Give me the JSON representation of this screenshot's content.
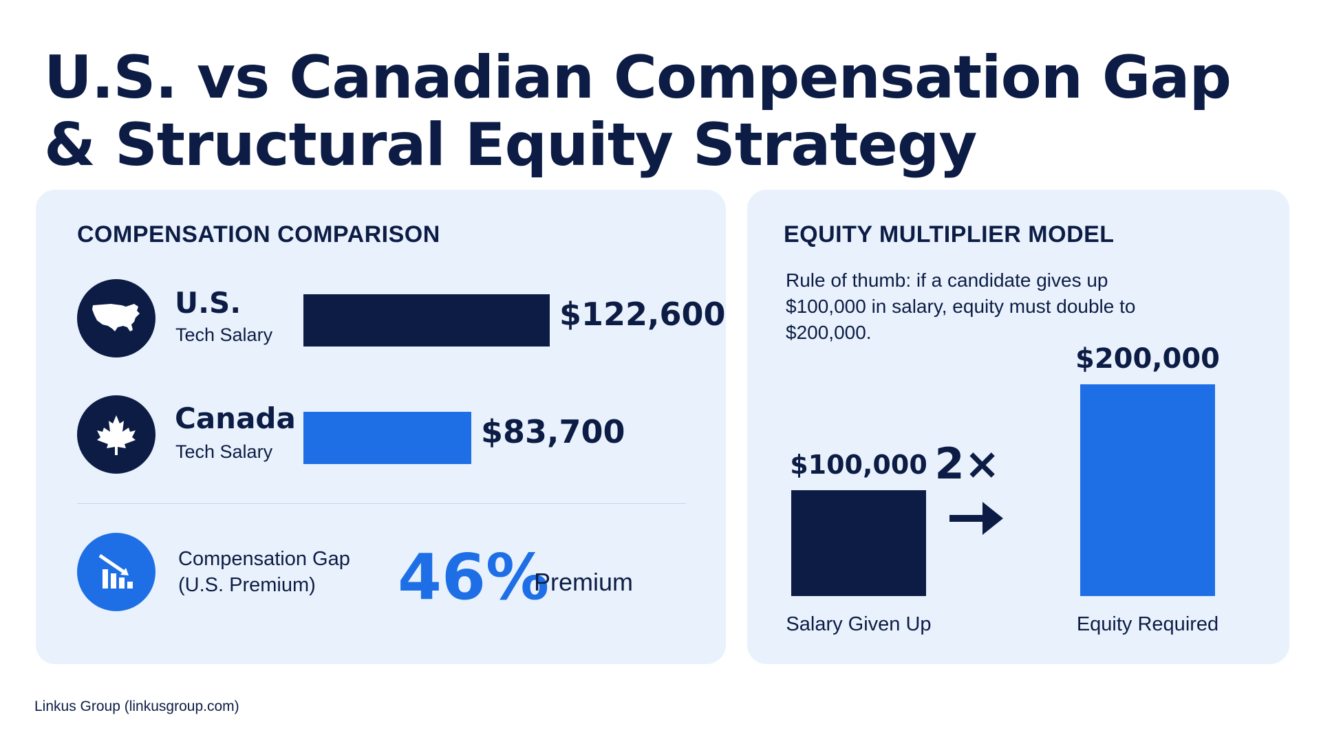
{
  "title": {
    "line1": "U.S. vs Canadian Compensation Gap",
    "line2": "& Structural Equity Strategy"
  },
  "colors": {
    "navy": "#0c1c45",
    "blue": "#1e6fe6",
    "panel": "#e9f2fc"
  },
  "comparison": {
    "heading": "COMPENSATION COMPARISON",
    "rows": [
      {
        "country": "U.S.",
        "sublabel": "Tech Salary",
        "value": 122600,
        "value_label": "$122,600",
        "icon": "us-map-icon"
      },
      {
        "country": "Canada",
        "sublabel": "Tech Salary",
        "value": 83700,
        "value_label": "$83,700",
        "icon": "maple-leaf-icon"
      }
    ],
    "gap": {
      "label_line1": "Compensation Gap",
      "label_line2": "(U.S. Premium)",
      "value": "46%",
      "suffix": "Premium",
      "icon": "declining-bar-chart-icon"
    }
  },
  "equity_model": {
    "heading": "EQUITY MULTIPLIER MODEL",
    "rule_text": "Rule of thumb: if a candidate gives up $100,000 in salary, equity must double to $200,000.",
    "multiplier_label": "2×"
  },
  "chart_data": [
    {
      "type": "bar",
      "orientation": "horizontal",
      "title": "COMPENSATION COMPARISON",
      "categories": [
        "U.S.",
        "Canada"
      ],
      "values": [
        122600,
        83700
      ],
      "data_labels": [
        "$122,600",
        "$83,700"
      ],
      "grid": false
    },
    {
      "type": "bar",
      "orientation": "vertical",
      "title": "EQUITY MULTIPLIER MODEL",
      "categories": [
        "Salary Given Up",
        "Equity Required"
      ],
      "values": [
        100000,
        200000
      ],
      "data_labels": [
        "$100,000",
        "$200,000"
      ],
      "grid": false
    }
  ],
  "source": "Linkus Group (linkusgroup.com)"
}
